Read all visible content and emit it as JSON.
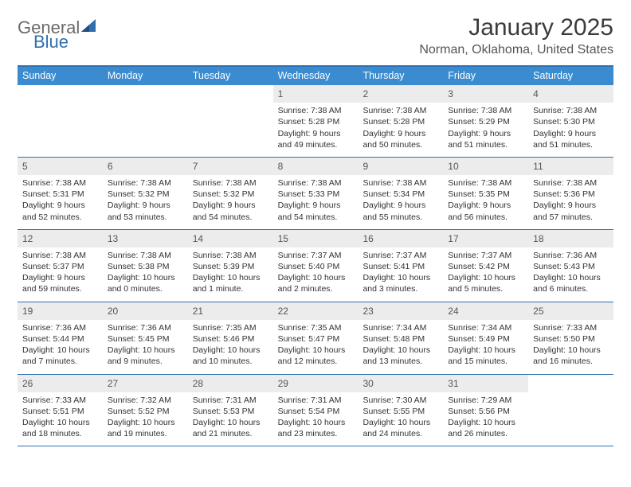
{
  "logo": {
    "general": "General",
    "blue": "Blue"
  },
  "title": "January 2025",
  "subtitle": "Norman, Oklahoma, United States",
  "colors": {
    "header_bar": "#3a8bd0",
    "border": "#2f6fb0",
    "daynum_bg": "#ececec",
    "text": "#333333",
    "logo_blue": "#2f6fb0",
    "logo_gray": "#6b6b6b"
  },
  "daysOfWeek": [
    "Sunday",
    "Monday",
    "Tuesday",
    "Wednesday",
    "Thursday",
    "Friday",
    "Saturday"
  ],
  "weeks": [
    [
      {
        "n": "",
        "sr": "",
        "ss": "",
        "dl": ""
      },
      {
        "n": "",
        "sr": "",
        "ss": "",
        "dl": ""
      },
      {
        "n": "",
        "sr": "",
        "ss": "",
        "dl": ""
      },
      {
        "n": "1",
        "sr": "7:38 AM",
        "ss": "5:28 PM",
        "dl": "9 hours and 49 minutes."
      },
      {
        "n": "2",
        "sr": "7:38 AM",
        "ss": "5:28 PM",
        "dl": "9 hours and 50 minutes."
      },
      {
        "n": "3",
        "sr": "7:38 AM",
        "ss": "5:29 PM",
        "dl": "9 hours and 51 minutes."
      },
      {
        "n": "4",
        "sr": "7:38 AM",
        "ss": "5:30 PM",
        "dl": "9 hours and 51 minutes."
      }
    ],
    [
      {
        "n": "5",
        "sr": "7:38 AM",
        "ss": "5:31 PM",
        "dl": "9 hours and 52 minutes."
      },
      {
        "n": "6",
        "sr": "7:38 AM",
        "ss": "5:32 PM",
        "dl": "9 hours and 53 minutes."
      },
      {
        "n": "7",
        "sr": "7:38 AM",
        "ss": "5:32 PM",
        "dl": "9 hours and 54 minutes."
      },
      {
        "n": "8",
        "sr": "7:38 AM",
        "ss": "5:33 PM",
        "dl": "9 hours and 54 minutes."
      },
      {
        "n": "9",
        "sr": "7:38 AM",
        "ss": "5:34 PM",
        "dl": "9 hours and 55 minutes."
      },
      {
        "n": "10",
        "sr": "7:38 AM",
        "ss": "5:35 PM",
        "dl": "9 hours and 56 minutes."
      },
      {
        "n": "11",
        "sr": "7:38 AM",
        "ss": "5:36 PM",
        "dl": "9 hours and 57 minutes."
      }
    ],
    [
      {
        "n": "12",
        "sr": "7:38 AM",
        "ss": "5:37 PM",
        "dl": "9 hours and 59 minutes."
      },
      {
        "n": "13",
        "sr": "7:38 AM",
        "ss": "5:38 PM",
        "dl": "10 hours and 0 minutes."
      },
      {
        "n": "14",
        "sr": "7:38 AM",
        "ss": "5:39 PM",
        "dl": "10 hours and 1 minute."
      },
      {
        "n": "15",
        "sr": "7:37 AM",
        "ss": "5:40 PM",
        "dl": "10 hours and 2 minutes."
      },
      {
        "n": "16",
        "sr": "7:37 AM",
        "ss": "5:41 PM",
        "dl": "10 hours and 3 minutes."
      },
      {
        "n": "17",
        "sr": "7:37 AM",
        "ss": "5:42 PM",
        "dl": "10 hours and 5 minutes."
      },
      {
        "n": "18",
        "sr": "7:36 AM",
        "ss": "5:43 PM",
        "dl": "10 hours and 6 minutes."
      }
    ],
    [
      {
        "n": "19",
        "sr": "7:36 AM",
        "ss": "5:44 PM",
        "dl": "10 hours and 7 minutes."
      },
      {
        "n": "20",
        "sr": "7:36 AM",
        "ss": "5:45 PM",
        "dl": "10 hours and 9 minutes."
      },
      {
        "n": "21",
        "sr": "7:35 AM",
        "ss": "5:46 PM",
        "dl": "10 hours and 10 minutes."
      },
      {
        "n": "22",
        "sr": "7:35 AM",
        "ss": "5:47 PM",
        "dl": "10 hours and 12 minutes."
      },
      {
        "n": "23",
        "sr": "7:34 AM",
        "ss": "5:48 PM",
        "dl": "10 hours and 13 minutes."
      },
      {
        "n": "24",
        "sr": "7:34 AM",
        "ss": "5:49 PM",
        "dl": "10 hours and 15 minutes."
      },
      {
        "n": "25",
        "sr": "7:33 AM",
        "ss": "5:50 PM",
        "dl": "10 hours and 16 minutes."
      }
    ],
    [
      {
        "n": "26",
        "sr": "7:33 AM",
        "ss": "5:51 PM",
        "dl": "10 hours and 18 minutes."
      },
      {
        "n": "27",
        "sr": "7:32 AM",
        "ss": "5:52 PM",
        "dl": "10 hours and 19 minutes."
      },
      {
        "n": "28",
        "sr": "7:31 AM",
        "ss": "5:53 PM",
        "dl": "10 hours and 21 minutes."
      },
      {
        "n": "29",
        "sr": "7:31 AM",
        "ss": "5:54 PM",
        "dl": "10 hours and 23 minutes."
      },
      {
        "n": "30",
        "sr": "7:30 AM",
        "ss": "5:55 PM",
        "dl": "10 hours and 24 minutes."
      },
      {
        "n": "31",
        "sr": "7:29 AM",
        "ss": "5:56 PM",
        "dl": "10 hours and 26 minutes."
      },
      {
        "n": "",
        "sr": "",
        "ss": "",
        "dl": ""
      }
    ]
  ],
  "labels": {
    "sunrise": "Sunrise:",
    "sunset": "Sunset:",
    "daylight": "Daylight:"
  }
}
